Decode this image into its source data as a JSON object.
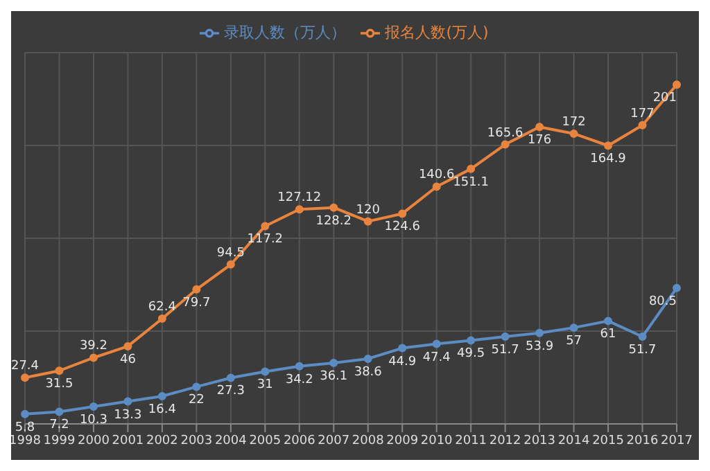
{
  "chart_data": {
    "type": "line",
    "categories": [
      "1998",
      "1999",
      "2000",
      "2001",
      "2002",
      "2003",
      "2004",
      "2005",
      "2006",
      "2007",
      "2008",
      "2009",
      "2010",
      "2011",
      "2012",
      "2013",
      "2014",
      "2015",
      "2016",
      "2017"
    ],
    "series": [
      {
        "name": "报名人数(万人)",
        "color": "#e8843e",
        "values": [
          27.4,
          31.5,
          39.2,
          46,
          62.4,
          79.7,
          94.5,
          117.2,
          127.12,
          128.2,
          120,
          124.6,
          140.6,
          151.1,
          165.6,
          176,
          172,
          164.9,
          177,
          201
        ]
      },
      {
        "name": "录取人数（万人）",
        "color": "#5b8cc4",
        "values": [
          5.8,
          7.2,
          10.3,
          13.3,
          16.4,
          22,
          27.3,
          31,
          34.2,
          36.1,
          38.6,
          44.9,
          47.4,
          49.5,
          51.7,
          53.9,
          57,
          61,
          51.7,
          80.5
        ]
      }
    ],
    "data_labels": true,
    "grid": true,
    "legend": "top",
    "tick_labels": "x",
    "marker": "circle",
    "line_style": "solid"
  }
}
